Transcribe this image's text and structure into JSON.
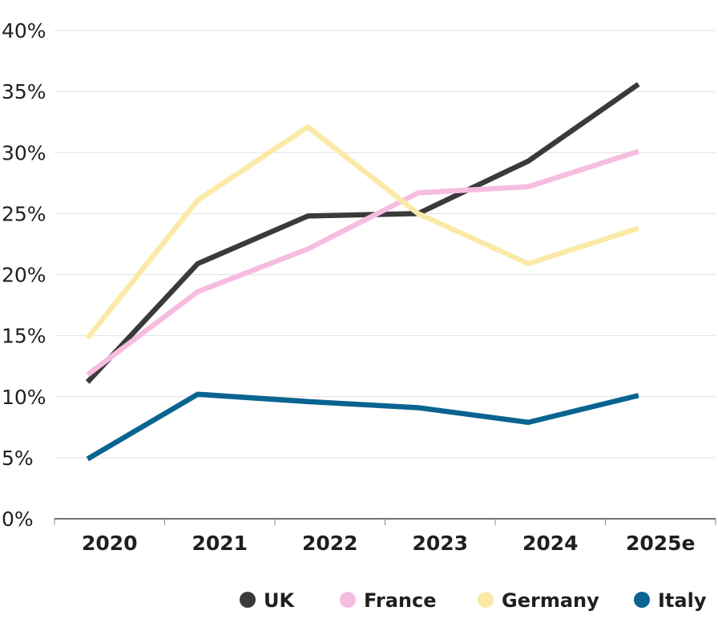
{
  "chart_data": {
    "type": "line",
    "title": "",
    "xlabel": "",
    "ylabel": "",
    "x": [
      "2020",
      "2021",
      "2022",
      "2023",
      "2024",
      "2025e"
    ],
    "ylim": [
      0,
      40
    ],
    "yticks": [
      0,
      5,
      10,
      15,
      20,
      25,
      30,
      35,
      40
    ],
    "ytick_labels": [
      "0%",
      "5%",
      "10%",
      "15%",
      "20%",
      "25%",
      "30%",
      "35%",
      "40%"
    ],
    "grid": true,
    "legend_position": "bottom-right",
    "series": [
      {
        "name": "UK",
        "color": "#3a3a3a",
        "values": [
          11.2,
          20.9,
          24.8,
          25.0,
          29.3,
          35.6
        ]
      },
      {
        "name": "France",
        "color": "#f6bde0",
        "values": [
          11.8,
          18.6,
          22.1,
          26.7,
          27.2,
          30.1
        ]
      },
      {
        "name": "Germany",
        "color": "#fbe9a7",
        "values": [
          14.8,
          26.1,
          32.1,
          25.0,
          20.9,
          23.8
        ]
      },
      {
        "name": "Italy",
        "color": "#0a6491",
        "values": [
          4.9,
          10.2,
          9.6,
          9.1,
          7.9,
          10.1
        ]
      }
    ]
  }
}
